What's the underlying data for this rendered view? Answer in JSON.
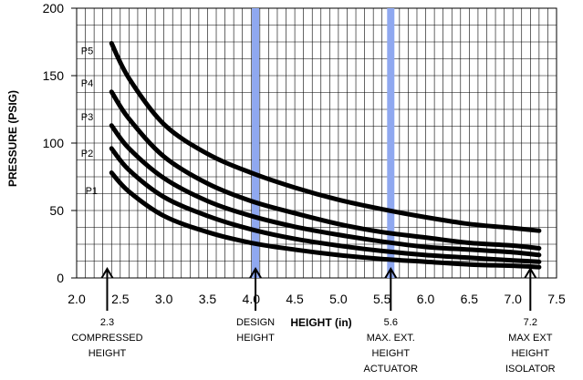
{
  "chart_data": {
    "type": "line",
    "title": "",
    "xlabel": "HEIGHT (in)",
    "ylabel": "PRESSURE (PSIG)",
    "xlim": [
      2.0,
      7.5
    ],
    "ylim": [
      0,
      200
    ],
    "grid": true,
    "x_ticks": [
      "2.0",
      "2.5",
      "3.0",
      "3.5",
      "4.0",
      "4.5",
      "5.0",
      "5.5",
      "6.0",
      "6.5",
      "7.0",
      "7.5"
    ],
    "y_ticks": [
      "0",
      "50",
      "100",
      "150",
      "200"
    ],
    "series": [
      {
        "name": "P1",
        "label_xy": [
          2.1,
          62
        ],
        "x": [
          2.4,
          2.6,
          3.0,
          3.5,
          4.0,
          4.5,
          5.0,
          5.5,
          6.0,
          6.5,
          7.0,
          7.3
        ],
        "y": [
          78,
          64,
          46,
          34,
          26,
          21,
          17,
          14,
          12,
          10,
          9,
          8
        ]
      },
      {
        "name": "P2",
        "label_xy": [
          2.05,
          90
        ],
        "x": [
          2.4,
          2.6,
          3.0,
          3.5,
          4.0,
          4.5,
          5.0,
          5.5,
          6.0,
          6.5,
          7.0,
          7.3
        ],
        "y": [
          96,
          80,
          60,
          46,
          36,
          29,
          24,
          20,
          17,
          15,
          13,
          12
        ]
      },
      {
        "name": "P3",
        "label_xy": [
          2.05,
          117
        ],
        "x": [
          2.4,
          2.6,
          3.0,
          3.5,
          4.0,
          4.5,
          5.0,
          5.5,
          6.0,
          6.5,
          7.0,
          7.3
        ],
        "y": [
          113,
          96,
          74,
          57,
          46,
          38,
          32,
          27,
          23,
          21,
          19,
          17
        ]
      },
      {
        "name": "P4",
        "label_xy": [
          2.05,
          142
        ],
        "x": [
          2.4,
          2.6,
          3.0,
          3.5,
          4.0,
          4.5,
          5.0,
          5.5,
          6.0,
          6.5,
          7.0,
          7.3
        ],
        "y": [
          138,
          118,
          90,
          70,
          57,
          48,
          40,
          34,
          30,
          26,
          24,
          22
        ]
      },
      {
        "name": "P5",
        "label_xy": [
          2.05,
          166
        ],
        "x": [
          2.4,
          2.6,
          3.0,
          3.5,
          4.0,
          4.5,
          5.0,
          5.5,
          6.0,
          6.5,
          7.0,
          7.3
        ],
        "y": [
          174,
          148,
          114,
          92,
          78,
          67,
          58,
          51,
          45,
          40,
          37,
          35
        ]
      }
    ],
    "reference_bands": [
      {
        "x": 4.05,
        "name": "design-height-band"
      },
      {
        "x": 5.6,
        "name": "max-ext-actuator-band"
      }
    ],
    "annotations": [
      {
        "x": 2.35,
        "lines": [
          "2.3",
          "COMPRESSED",
          "HEIGHT"
        ]
      },
      {
        "x": 4.05,
        "lines": [
          "DESIGN",
          "HEIGHT"
        ]
      },
      {
        "x": 5.6,
        "lines": [
          "5.6",
          "MAX. EXT.",
          "HEIGHT",
          "ACTUATOR"
        ]
      },
      {
        "x": 7.2,
        "lines": [
          "7.2",
          "MAX EXT",
          "HEIGHT",
          "ISOLATOR"
        ]
      }
    ],
    "colors": {
      "curve": "#000000",
      "band": "#8fa8f0",
      "grid": "#000000",
      "bg": "#ffffff"
    }
  }
}
